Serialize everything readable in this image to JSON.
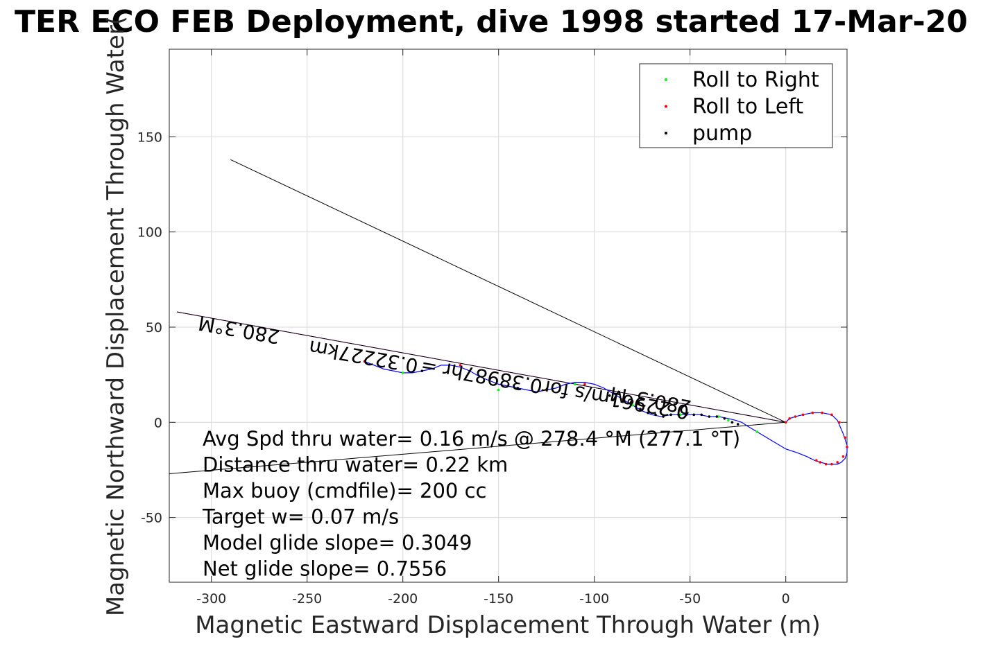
{
  "chart_data": {
    "type": "scatter",
    "title": "TER ECO FEB Deployment, dive 1998 started 17-Mar-20",
    "xlabel": "Magnetic Eastward Displacement Through Water (m)",
    "ylabel": "Magnetic Northward Displacement Through Water(",
    "xlim": [
      -322,
      32
    ],
    "ylim": [
      -84,
      196
    ],
    "xticks": [
      -300,
      -250,
      -200,
      -150,
      -100,
      -50,
      0
    ],
    "yticks": [
      -50,
      0,
      50,
      100,
      150
    ],
    "grid": true,
    "legend_position": "top-right",
    "legend": [
      {
        "label": "Roll to Right",
        "color": "#00ff00"
      },
      {
        "label": "Roll to Left",
        "color": "#ff0000"
      },
      {
        "label": "pump",
        "color": "#000000"
      }
    ],
    "series": [
      {
        "kind": "track",
        "color": "#0000ff",
        "x": [
          0,
          2,
          5,
          9,
          14,
          19,
          24,
          27,
          30,
          32,
          32,
          31,
          29,
          27,
          25,
          22,
          18,
          15,
          11,
          6,
          0,
          -5,
          -10,
          -15,
          -20,
          -23,
          -26,
          -30,
          -35,
          -40,
          -45,
          -50,
          -55,
          -60,
          -65,
          -70,
          -75,
          -80,
          -85,
          -90,
          -95,
          -100,
          -105,
          -110,
          -115,
          -120,
          -125,
          -130,
          -135,
          -140,
          -145,
          -150,
          -155,
          -160,
          -165,
          -170,
          -175,
          -180,
          -185,
          -190,
          -195,
          -200,
          -205,
          -210,
          -215,
          -220
        ],
        "y": [
          0,
          2,
          3,
          4,
          5,
          5,
          4,
          1,
          -6,
          -12,
          -16,
          -19,
          -21,
          -22,
          -22,
          -22,
          -21,
          -20,
          -18,
          -16,
          -14,
          -11,
          -8,
          -5,
          -2,
          0,
          1,
          2,
          3,
          3,
          4,
          4,
          4,
          4,
          3,
          4,
          6,
          9,
          12,
          15,
          18,
          20,
          21,
          21,
          20,
          18,
          17,
          16,
          17,
          18,
          19,
          20,
          22,
          24,
          27,
          29,
          30,
          30,
          28,
          27,
          26,
          26,
          27,
          28,
          30,
          32
        ]
      },
      {
        "kind": "line",
        "label": "heading-line",
        "color": "#ff00ff",
        "x": [
          0,
          -318
        ],
        "y": [
          0,
          58
        ]
      },
      {
        "kind": "line",
        "label": "heading-line-black",
        "color": "#000000",
        "x": [
          0,
          -318
        ],
        "y": [
          0,
          58
        ]
      },
      {
        "kind": "line",
        "label": "diagonal-line",
        "color": "#000000",
        "x": [
          -290,
          0
        ],
        "y": [
          138,
          0
        ]
      },
      {
        "kind": "line",
        "label": "lower-line",
        "color": "#000000",
        "x": [
          -322,
          0
        ],
        "y": [
          -27,
          0
        ]
      }
    ],
    "markers": {
      "roll_right": {
        "color": "#00ff00",
        "x": [
          -15,
          -35,
          -55,
          -80,
          -110,
          -150,
          -200,
          -30,
          -60
        ],
        "y": [
          -5,
          3,
          4,
          9,
          20,
          17,
          26,
          1,
          4
        ]
      },
      "roll_left": {
        "color": "#ff0000",
        "x": [
          2,
          5,
          9,
          14,
          19,
          24,
          28,
          31,
          32,
          30,
          27,
          24,
          21,
          18,
          16,
          0,
          -220,
          -170,
          -125,
          -105,
          -85
        ],
        "y": [
          2,
          3,
          4,
          5,
          5,
          4,
          0,
          -8,
          -13,
          -18,
          -21,
          -22,
          -22,
          -21,
          -20,
          0,
          32,
          30,
          17,
          20,
          12
        ]
      },
      "pump": {
        "color": "#000000",
        "x": [
          -25,
          -28,
          -32,
          -36,
          -40,
          -44,
          -48,
          -52,
          -56,
          -60,
          -64,
          -68,
          -72,
          -76,
          -92,
          -140,
          -190
        ],
        "y": [
          -1,
          0,
          2,
          3,
          3,
          4,
          4,
          4,
          4,
          4,
          3,
          4,
          5,
          7,
          14,
          18,
          27
        ]
      }
    },
    "annotations": [
      {
        "text": "280.3°M",
        "x": -285,
        "y": 52,
        "rotation": 190
      },
      {
        "text": "0.32227km",
        "x": -220,
        "y": 38,
        "rotation": 190
      },
      {
        "text": "0.22961m/s for0.38987hr =",
        "x": -120,
        "y": 21,
        "rotation": 190
      },
      {
        "text": "280.3°M",
        "x": -70,
        "y": 15,
        "rotation": 190
      }
    ],
    "stats": [
      "Avg Spd thru water=  0.16 m/s @ 278.4 °M (277.1 °T)",
      "Distance thru water=  0.22 km",
      "Max buoy (cmdfile)= 200 cc",
      "Target w= 0.07 m/s",
      "Model glide slope= 0.3049",
      "Net glide slope= 0.7556"
    ]
  }
}
